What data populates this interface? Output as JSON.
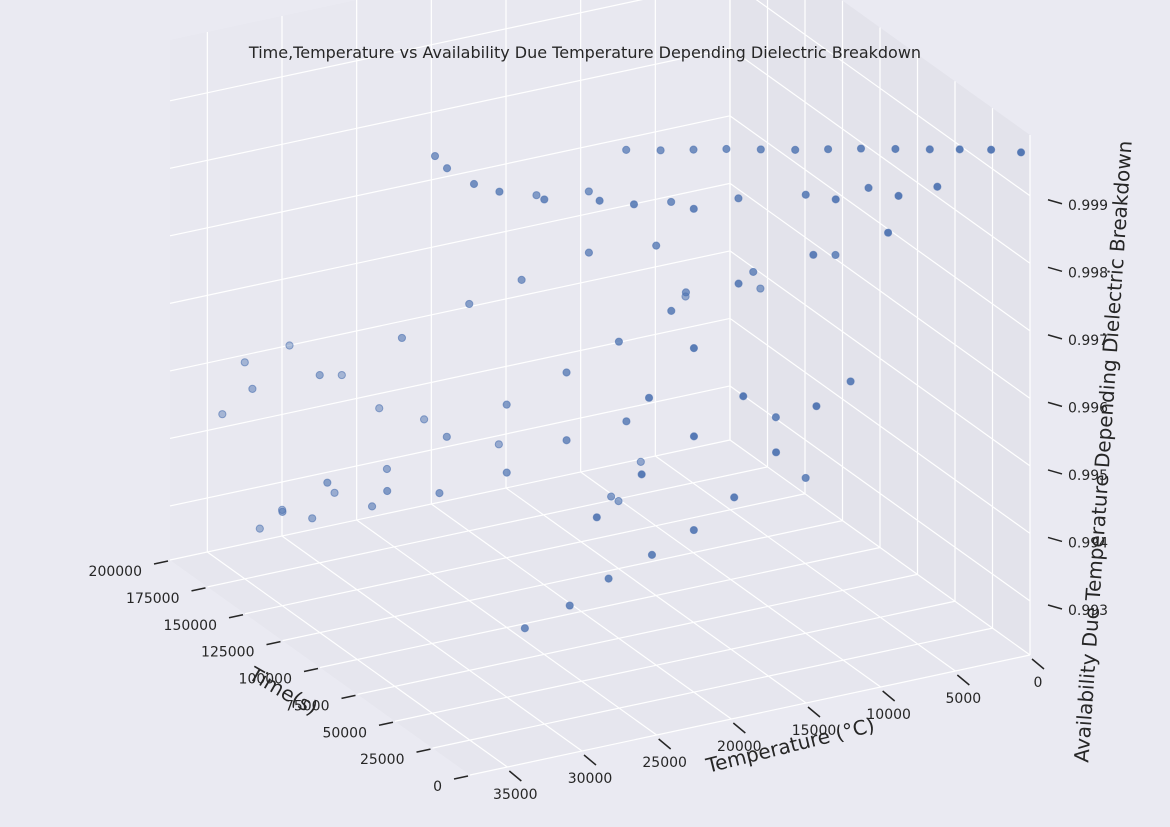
{
  "chart_data": {
    "type": "scatter",
    "projection": "3d",
    "title": "Time,Temperature vs Availability Due Temperature Depending Dielectric Breakdown",
    "xlabel": "Time(s)",
    "ylabel": "Temperature (°C)",
    "zlabel": "Availability Due Temperature Depending Dielectric Breakdown",
    "x_ticks": [
      "0",
      "25000",
      "50000",
      "75000",
      "100000",
      "125000",
      "150000",
      "175000",
      "200000"
    ],
    "y_ticks": [
      "0",
      "5000",
      "10000",
      "15000",
      "20000",
      "25000",
      "30000",
      "35000"
    ],
    "z_ticks": [
      "0.993",
      "0.994",
      "0.995",
      "0.996",
      "0.997",
      "0.998",
      "0.999"
    ],
    "xlim": [
      0,
      200000
    ],
    "ylim": [
      0,
      37500
    ],
    "zlim": [
      0.9922,
      0.9999
    ],
    "grid": true,
    "colors": {
      "background": "#EAEAF2",
      "pane_left": "#E8E8F0",
      "pane_back": "#E3E3EB",
      "pane_floor": "#E6E6EE",
      "grid": "#FFFFFF",
      "point": "#4C72B0",
      "text": "#262626"
    },
    "points": [
      {
        "x": 1000,
        "y": 500,
        "z": 0.99965
      },
      {
        "x": 8000,
        "y": 1800,
        "z": 0.99964
      },
      {
        "x": 15000,
        "y": 3200,
        "z": 0.9996
      },
      {
        "x": 22000,
        "y": 4500,
        "z": 0.99955
      },
      {
        "x": 30000,
        "y": 6000,
        "z": 0.9995
      },
      {
        "x": 38000,
        "y": 7500,
        "z": 0.99945
      },
      {
        "x": 45000,
        "y": 9000,
        "z": 0.9994
      },
      {
        "x": 52000,
        "y": 10500,
        "z": 0.99935
      },
      {
        "x": 60000,
        "y": 12000,
        "z": 0.9993
      },
      {
        "x": 68000,
        "y": 13500,
        "z": 0.99925
      },
      {
        "x": 75000,
        "y": 15000,
        "z": 0.9992
      },
      {
        "x": 82000,
        "y": 16500,
        "z": 0.99915
      },
      {
        "x": 90000,
        "y": 18000,
        "z": 0.9991
      },
      {
        "x": 12000,
        "y": 5000,
        "z": 0.99918
      },
      {
        "x": 28000,
        "y": 8000,
        "z": 0.99905
      },
      {
        "x": 40000,
        "y": 11000,
        "z": 0.9989
      },
      {
        "x": 55000,
        "y": 14000,
        "z": 0.99875
      },
      {
        "x": 70000,
        "y": 17000,
        "z": 0.9986
      },
      {
        "x": 95000,
        "y": 20000,
        "z": 0.9985
      },
      {
        "x": 110000,
        "y": 22000,
        "z": 0.9983
      },
      {
        "x": 5000,
        "y": 9000,
        "z": 0.9988
      },
      {
        "x": 20000,
        "y": 12500,
        "z": 0.9984
      },
      {
        "x": 35000,
        "y": 16000,
        "z": 0.9979
      },
      {
        "x": 50000,
        "y": 19000,
        "z": 0.9974
      },
      {
        "x": 65000,
        "y": 21000,
        "z": 0.9968
      },
      {
        "x": 80000,
        "y": 23000,
        "z": 0.9962
      },
      {
        "x": 100000,
        "y": 25000,
        "z": 0.9955
      },
      {
        "x": 120000,
        "y": 27000,
        "z": 0.9948
      },
      {
        "x": 140000,
        "y": 29000,
        "z": 0.9941
      },
      {
        "x": 160000,
        "y": 30500,
        "z": 0.9935
      },
      {
        "x": 180000,
        "y": 32000,
        "z": 0.993
      },
      {
        "x": 3000,
        "y": 14000,
        "z": 0.9965
      },
      {
        "x": 10000,
        "y": 16000,
        "z": 0.9958
      },
      {
        "x": 18000,
        "y": 18000,
        "z": 0.9951
      },
      {
        "x": 25000,
        "y": 20000,
        "z": 0.9946
      },
      {
        "x": 33000,
        "y": 22000,
        "z": 0.9942
      },
      {
        "x": 42000,
        "y": 24000,
        "z": 0.9938
      },
      {
        "x": 48000,
        "y": 26000,
        "z": 0.9934
      },
      {
        "x": 58000,
        "y": 28000,
        "z": 0.993
      },
      {
        "x": 15000,
        "y": 21000,
        "z": 0.9975
      },
      {
        "x": 25000,
        "y": 23000,
        "z": 0.9967
      },
      {
        "x": 60000,
        "y": 21000,
        "z": 0.9957
      },
      {
        "x": 75000,
        "y": 23500,
        "z": 0.9953
      },
      {
        "x": 90000,
        "y": 26000,
        "z": 0.9947
      },
      {
        "x": 105000,
        "y": 29000,
        "z": 0.9943
      },
      {
        "x": 130000,
        "y": 31000,
        "z": 0.9938
      },
      {
        "x": 150000,
        "y": 33000,
        "z": 0.9934
      },
      {
        "x": 170000,
        "y": 34500,
        "z": 0.993
      },
      {
        "x": 40000,
        "y": 13000,
        "z": 0.9957
      },
      {
        "x": 30000,
        "y": 9000,
        "z": 0.9962
      },
      {
        "x": 8000,
        "y": 8000,
        "z": 0.99925
      },
      {
        "x": 20000,
        "y": 11000,
        "z": 0.99915
      },
      {
        "x": 35000,
        "y": 19000,
        "z": 0.99915
      },
      {
        "x": 45000,
        "y": 22000,
        "z": 0.9992
      },
      {
        "x": 48000,
        "y": 24000,
        "z": 0.9993
      },
      {
        "x": 55000,
        "y": 27000,
        "z": 0.99935
      },
      {
        "x": 65000,
        "y": 29000,
        "z": 0.9994
      },
      {
        "x": 72000,
        "y": 30000,
        "z": 0.99945
      },
      {
        "x": 85000,
        "y": 30500,
        "z": 0.9995
      },
      {
        "x": 98000,
        "y": 30000,
        "z": 0.99945
      },
      {
        "x": 50000,
        "y": 10000,
        "z": 0.9945
      },
      {
        "x": 110000,
        "y": 17000,
        "z": 0.9936
      },
      {
        "x": 125000,
        "y": 15000,
        "z": 0.9932
      },
      {
        "x": 140000,
        "y": 12000,
        "z": 0.9934
      },
      {
        "x": 155000,
        "y": 20000,
        "z": 0.9938
      },
      {
        "x": 165000,
        "y": 24000,
        "z": 0.9942
      },
      {
        "x": 175000,
        "y": 26000,
        "z": 0.9943
      },
      {
        "x": 190000,
        "y": 27000,
        "z": 0.9946
      },
      {
        "x": 195000,
        "y": 30000,
        "z": 0.9951
      },
      {
        "x": 185000,
        "y": 34000,
        "z": 0.9952
      },
      {
        "x": 160000,
        "y": 36000,
        "z": 0.9953
      },
      {
        "x": 145000,
        "y": 33000,
        "z": 0.9956
      },
      {
        "x": 130000,
        "y": 29000,
        "z": 0.9962
      },
      {
        "x": 115000,
        "y": 26000,
        "z": 0.9968
      },
      {
        "x": 100000,
        "y": 24000,
        "z": 0.9973
      },
      {
        "x": 85000,
        "y": 21000,
        "z": 0.9978
      },
      {
        "x": 70000,
        "y": 18000,
        "z": 0.998
      },
      {
        "x": 90000,
        "y": 14000,
        "z": 0.9968
      },
      {
        "x": 75000,
        "y": 11000,
        "z": 0.9972
      },
      {
        "x": 60000,
        "y": 7000,
        "z": 0.9975
      },
      {
        "x": 100000,
        "y": 33000,
        "z": 0.9946
      },
      {
        "x": 120000,
        "y": 35000,
        "z": 0.9945
      },
      {
        "x": 135000,
        "y": 36500,
        "z": 0.9939
      },
      {
        "x": 20000,
        "y": 27000,
        "z": 0.9952
      },
      {
        "x": 10000,
        "y": 25000,
        "z": 0.9959
      },
      {
        "x": 5000,
        "y": 22000,
        "z": 0.9964
      },
      {
        "x": 2000,
        "y": 19000,
        "z": 0.9969
      },
      {
        "x": 150000,
        "y": 8000,
        "z": 0.9955
      },
      {
        "x": 120000,
        "y": 6000,
        "z": 0.996
      },
      {
        "x": 190000,
        "y": 35000,
        "z": 0.9944
      }
    ]
  }
}
